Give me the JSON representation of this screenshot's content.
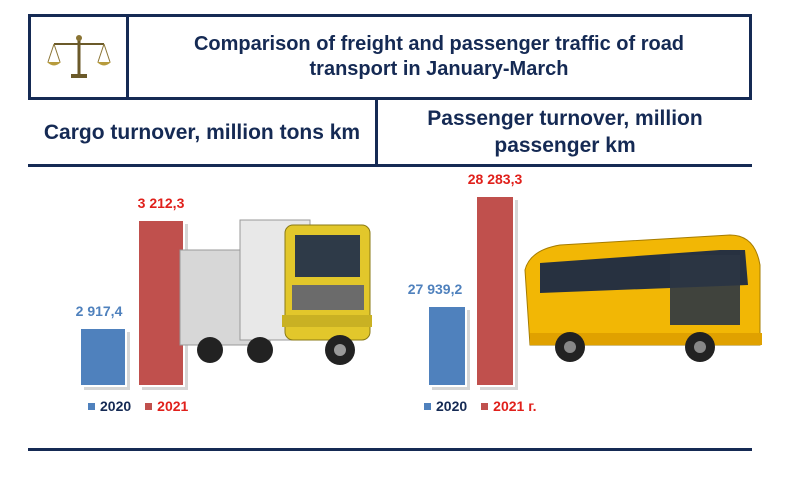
{
  "header": {
    "title": "Comparison of freight and passenger traffic of road transport in January-March",
    "logo_icon": "scales-icon"
  },
  "sections": {
    "cargo_heading": "Cargo turnover, million tons km",
    "passenger_heading": "Passenger turnover, million passenger km"
  },
  "colors": {
    "navy": "#152a54",
    "series_2020": "#4f81bd",
    "series_2021": "#c0504d",
    "label_2020": "#4f81bd",
    "label_2021": "#e0201b"
  },
  "chart_data": [
    {
      "type": "bar",
      "title": "Cargo turnover, million tons km",
      "series": [
        {
          "name": "2020",
          "values": [
            2917.4
          ],
          "label": "2 917,4"
        },
        {
          "name": "2021",
          "values": [
            3212.3
          ],
          "label": "3 212,3"
        }
      ],
      "legend": [
        "2020",
        "2021"
      ],
      "legend_position": "bottom",
      "image": "truck-icon"
    },
    {
      "type": "bar",
      "title": "Passenger turnover, million passenger km",
      "series": [
        {
          "name": "2020",
          "values": [
            27939.2
          ],
          "label": "27 939,2"
        },
        {
          "name": "2021",
          "values": [
            28283.3
          ],
          "label": "28 283,3"
        }
      ],
      "legend": [
        "2020",
        "2021 г."
      ],
      "legend_position": "bottom",
      "image": "bus-icon"
    }
  ]
}
